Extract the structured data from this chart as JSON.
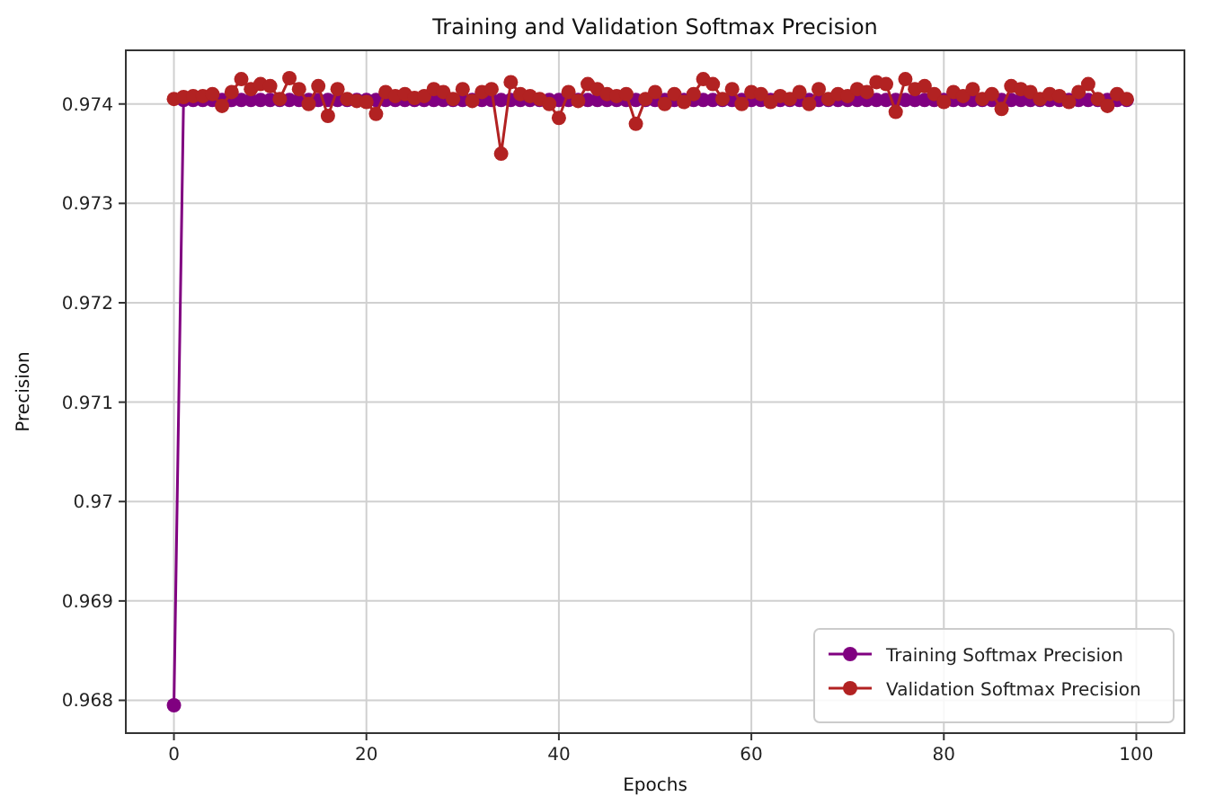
{
  "chart_data": {
    "type": "line",
    "title": "Training and Validation Softmax Precision",
    "xlabel": "Epochs",
    "ylabel": "Precision",
    "x": [
      0,
      1,
      2,
      3,
      4,
      5,
      6,
      7,
      8,
      9,
      10,
      11,
      12,
      13,
      14,
      15,
      16,
      17,
      18,
      19,
      20,
      21,
      22,
      23,
      24,
      25,
      26,
      27,
      28,
      29,
      30,
      31,
      32,
      33,
      34,
      35,
      36,
      37,
      38,
      39,
      40,
      41,
      42,
      43,
      44,
      45,
      46,
      47,
      48,
      49,
      50,
      51,
      52,
      53,
      54,
      55,
      56,
      57,
      58,
      59,
      60,
      61,
      62,
      63,
      64,
      65,
      66,
      67,
      68,
      69,
      70,
      71,
      72,
      73,
      74,
      75,
      76,
      77,
      78,
      79,
      80,
      81,
      82,
      83,
      84,
      85,
      86,
      87,
      88,
      89,
      90,
      91,
      92,
      93,
      94,
      95,
      96,
      97,
      98,
      99
    ],
    "series": [
      {
        "name": "Training Softmax Precision",
        "color": "#800080",
        "values": [
          0.96795,
          0.97404,
          0.97404,
          0.97404,
          0.97404,
          0.97404,
          0.97404,
          0.97404,
          0.97404,
          0.97404,
          0.97404,
          0.97404,
          0.97404,
          0.97404,
          0.97404,
          0.97404,
          0.97404,
          0.97404,
          0.97404,
          0.97404,
          0.97404,
          0.97404,
          0.97404,
          0.97404,
          0.97404,
          0.97404,
          0.97404,
          0.97404,
          0.97404,
          0.97404,
          0.97404,
          0.97404,
          0.97404,
          0.97404,
          0.97404,
          0.97404,
          0.97404,
          0.97404,
          0.97404,
          0.97404,
          0.97404,
          0.97404,
          0.97404,
          0.97404,
          0.97404,
          0.97404,
          0.97404,
          0.97404,
          0.97404,
          0.97404,
          0.97404,
          0.97404,
          0.97404,
          0.97404,
          0.97404,
          0.97404,
          0.97404,
          0.97404,
          0.97404,
          0.97404,
          0.97404,
          0.97404,
          0.97404,
          0.97404,
          0.97404,
          0.97404,
          0.97404,
          0.97404,
          0.97404,
          0.97404,
          0.97404,
          0.97404,
          0.97404,
          0.97404,
          0.97404,
          0.97404,
          0.97404,
          0.97404,
          0.97404,
          0.97404,
          0.97404,
          0.97404,
          0.97404,
          0.97404,
          0.97404,
          0.97404,
          0.97404,
          0.97404,
          0.97404,
          0.97404,
          0.97404,
          0.97404,
          0.97404,
          0.97404,
          0.97404,
          0.97404,
          0.97404,
          0.97404,
          0.97404,
          0.97404
        ]
      },
      {
        "name": "Validation Softmax Precision",
        "color": "#b22222",
        "values": [
          0.97405,
          0.97407,
          0.97408,
          0.97408,
          0.9741,
          0.97398,
          0.97412,
          0.97425,
          0.97415,
          0.9742,
          0.97418,
          0.97405,
          0.97426,
          0.97415,
          0.974,
          0.97418,
          0.97388,
          0.97415,
          0.97405,
          0.97403,
          0.97402,
          0.9739,
          0.97412,
          0.97408,
          0.9741,
          0.97406,
          0.97408,
          0.97415,
          0.97412,
          0.97405,
          0.97415,
          0.97403,
          0.97412,
          0.97415,
          0.9735,
          0.97422,
          0.9741,
          0.97408,
          0.97405,
          0.974,
          0.97386,
          0.97412,
          0.97403,
          0.9742,
          0.97415,
          0.9741,
          0.97408,
          0.9741,
          0.9738,
          0.97405,
          0.97412,
          0.974,
          0.9741,
          0.97402,
          0.9741,
          0.97425,
          0.9742,
          0.97405,
          0.97415,
          0.974,
          0.97412,
          0.9741,
          0.97402,
          0.97408,
          0.97405,
          0.97412,
          0.974,
          0.97415,
          0.97405,
          0.9741,
          0.97408,
          0.97415,
          0.97412,
          0.97422,
          0.9742,
          0.97392,
          0.97425,
          0.97415,
          0.97418,
          0.9741,
          0.97402,
          0.97412,
          0.97408,
          0.97415,
          0.97405,
          0.9741,
          0.97395,
          0.97418,
          0.97415,
          0.97412,
          0.97405,
          0.9741,
          0.97408,
          0.97402,
          0.97412,
          0.9742,
          0.97405,
          0.97398,
          0.9741,
          0.97405
        ]
      }
    ],
    "xlim": [
      -5,
      105
    ],
    "xticks": [
      0,
      20,
      40,
      60,
      80,
      100
    ],
    "ylim": [
      0.96767,
      0.97454
    ],
    "yticks": [
      0.968,
      0.969,
      0.97,
      0.971,
      0.972,
      0.973,
      0.974
    ],
    "grid": true,
    "legend": "bottom right",
    "marker": "circle",
    "line_style": "solid"
  }
}
